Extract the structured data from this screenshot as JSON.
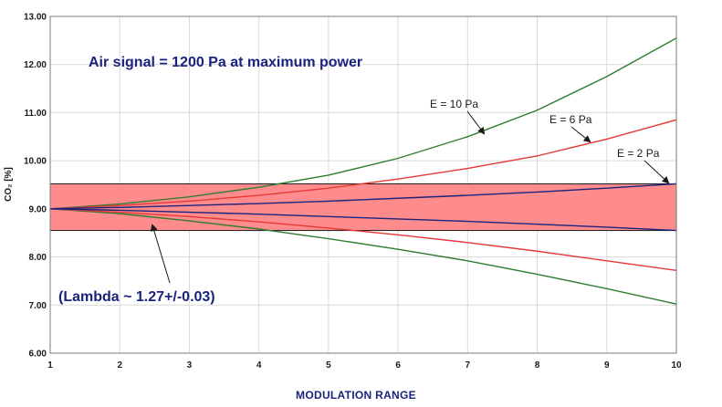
{
  "chart_data": {
    "type": "line",
    "xlabel": "MODULATION RANGE",
    "ylabel": "CO₂ [%]",
    "xlim": [
      1,
      10
    ],
    "ylim": [
      6.0,
      13.0
    ],
    "x_ticks": [
      "1",
      "2",
      "3",
      "4",
      "5",
      "6",
      "7",
      "8",
      "9",
      "10"
    ],
    "y_ticks": [
      "6.00",
      "7.00",
      "8.00",
      "9.00",
      "10.00",
      "11.00",
      "12.00",
      "13.00"
    ],
    "grid": true,
    "band": {
      "y_min": 8.55,
      "y_max": 9.52,
      "x_min": 1,
      "x_max": 10,
      "color": "#ff8c8c"
    },
    "x": [
      1,
      2,
      3,
      4,
      5,
      6,
      7,
      8,
      9,
      10
    ],
    "series": [
      {
        "name": "E = 10 Pa upper",
        "color": "#2e7d32",
        "values": [
          9.0,
          9.1,
          9.25,
          9.45,
          9.7,
          10.05,
          10.5,
          11.05,
          11.75,
          12.55
        ]
      },
      {
        "name": "E = 10 Pa lower",
        "color": "#2e7d32",
        "values": [
          9.0,
          8.9,
          8.75,
          8.58,
          8.38,
          8.16,
          7.92,
          7.64,
          7.34,
          7.02
        ]
      },
      {
        "name": "E = 6 Pa upper",
        "color": "#e53935",
        "values": [
          9.0,
          9.07,
          9.16,
          9.28,
          9.43,
          9.62,
          9.84,
          10.1,
          10.45,
          10.85
        ]
      },
      {
        "name": "E = 6 Pa lower",
        "color": "#e53935",
        "values": [
          9.0,
          8.93,
          8.84,
          8.73,
          8.6,
          8.46,
          8.3,
          8.12,
          7.92,
          7.72
        ]
      },
      {
        "name": "E = 2 Pa upper",
        "color": "#1a237e",
        "values": [
          9.0,
          9.03,
          9.07,
          9.11,
          9.16,
          9.22,
          9.28,
          9.35,
          9.43,
          9.52
        ]
      },
      {
        "name": "E = 2 Pa lower",
        "color": "#1a237e",
        "values": [
          9.0,
          8.97,
          8.93,
          8.89,
          8.84,
          8.79,
          8.74,
          8.68,
          8.62,
          8.55
        ]
      }
    ],
    "annotations": {
      "air_signal": "Air signal = 1200 Pa at maximum power",
      "lambda": "(Lambda ~ 1.27+/-0.03)",
      "e10": "E =  10 Pa",
      "e6": "E =  6 Pa",
      "e2": "E =  2 Pa"
    }
  }
}
